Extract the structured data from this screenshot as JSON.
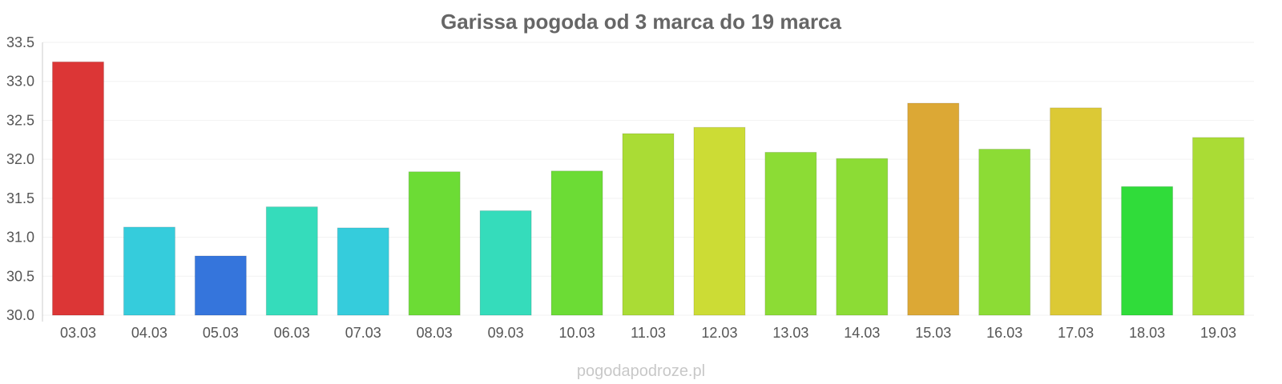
{
  "chart_data": {
    "type": "bar",
    "title": "Garissa pogoda od 3 marca do 19 marca",
    "categories": [
      "03.03",
      "04.03",
      "05.03",
      "06.03",
      "07.03",
      "08.03",
      "09.03",
      "10.03",
      "11.03",
      "12.03",
      "13.03",
      "14.03",
      "15.03",
      "16.03",
      "17.03",
      "18.03",
      "19.03"
    ],
    "values": [
      33.25,
      31.13,
      30.76,
      31.39,
      31.12,
      31.84,
      31.34,
      31.85,
      32.33,
      32.41,
      32.09,
      32.01,
      32.72,
      32.13,
      32.66,
      31.65,
      32.28
    ],
    "colors": [
      "#dc3636",
      "#35ccdc",
      "#3575dc",
      "#35dcbb",
      "#35ccdc",
      "#6cdc35",
      "#35dcbb",
      "#6cdc35",
      "#aadc35",
      "#ccdc35",
      "#8cdc35",
      "#8cdc35",
      "#dca835",
      "#8cdc35",
      "#dcc935",
      "#30dc3a",
      "#aadc35"
    ],
    "yticks": [
      "30.0",
      "30.5",
      "31.0",
      "31.5",
      "32.0",
      "32.5",
      "33.0",
      "33.5"
    ],
    "ylim": [
      30.0,
      33.5
    ],
    "xlabel": "",
    "ylabel": "",
    "grid": true,
    "legend": "none"
  },
  "watermark": "pogodapodroze.pl"
}
